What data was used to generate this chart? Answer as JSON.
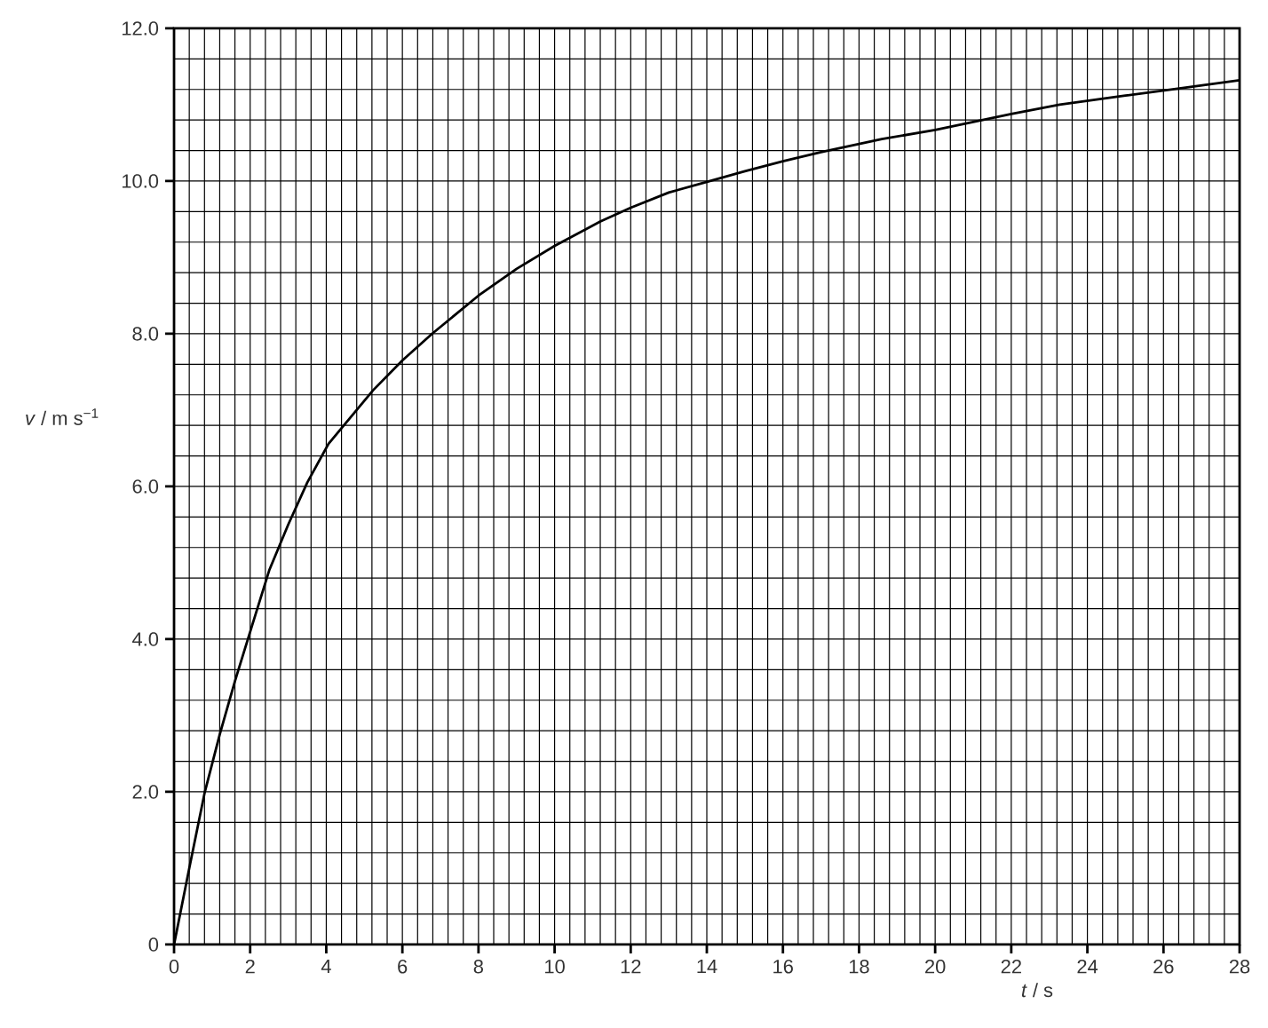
{
  "chart_data": {
    "type": "line",
    "xlabel": "*t* / s",
    "ylabel": "*v* / m s$^{−1}$",
    "x": [
      0,
      0.4,
      0.8,
      1.2,
      1.6,
      2.04,
      2.5,
      3,
      3.5,
      4.06,
      5.23,
      6,
      6.78,
      8,
      9,
      10,
      11.2,
      12,
      13,
      13.94,
      15,
      16,
      17,
      18.6,
      20,
      22,
      23.27,
      25,
      26.5,
      28
    ],
    "series": [
      {
        "color": "#000000",
        "values": [
          0,
          1.0,
          1.98,
          2.75,
          3.45,
          4.16,
          4.9,
          5.5,
          6.05,
          6.56,
          7.26,
          7.65,
          8.0,
          8.5,
          8.85,
          9.15,
          9.47,
          9.65,
          9.85,
          9.98,
          10.13,
          10.26,
          10.38,
          10.55,
          10.67,
          10.88,
          11.0,
          11.12,
          11.22,
          11.32
        ]
      }
    ],
    "xlim": [
      0,
      28
    ],
    "ylim": [
      0,
      12
    ],
    "xticks": [
      0,
      2,
      4,
      6,
      8,
      10,
      12,
      14,
      16,
      18,
      20,
      22,
      24,
      26,
      28
    ],
    "yticks": [
      0,
      {
        "value": 2,
        "label": "2.0"
      },
      {
        "value": 4,
        "label": "4.0"
      },
      {
        "value": 6,
        "label": "6.0"
      },
      {
        "value": 8,
        "label": "8.0"
      },
      {
        "value": 10,
        "label": "10.0"
      },
      {
        "value": 12,
        "label": "12.0"
      }
    ],
    "grid": true,
    "marker": "none",
    "line_style": "solid"
  }
}
